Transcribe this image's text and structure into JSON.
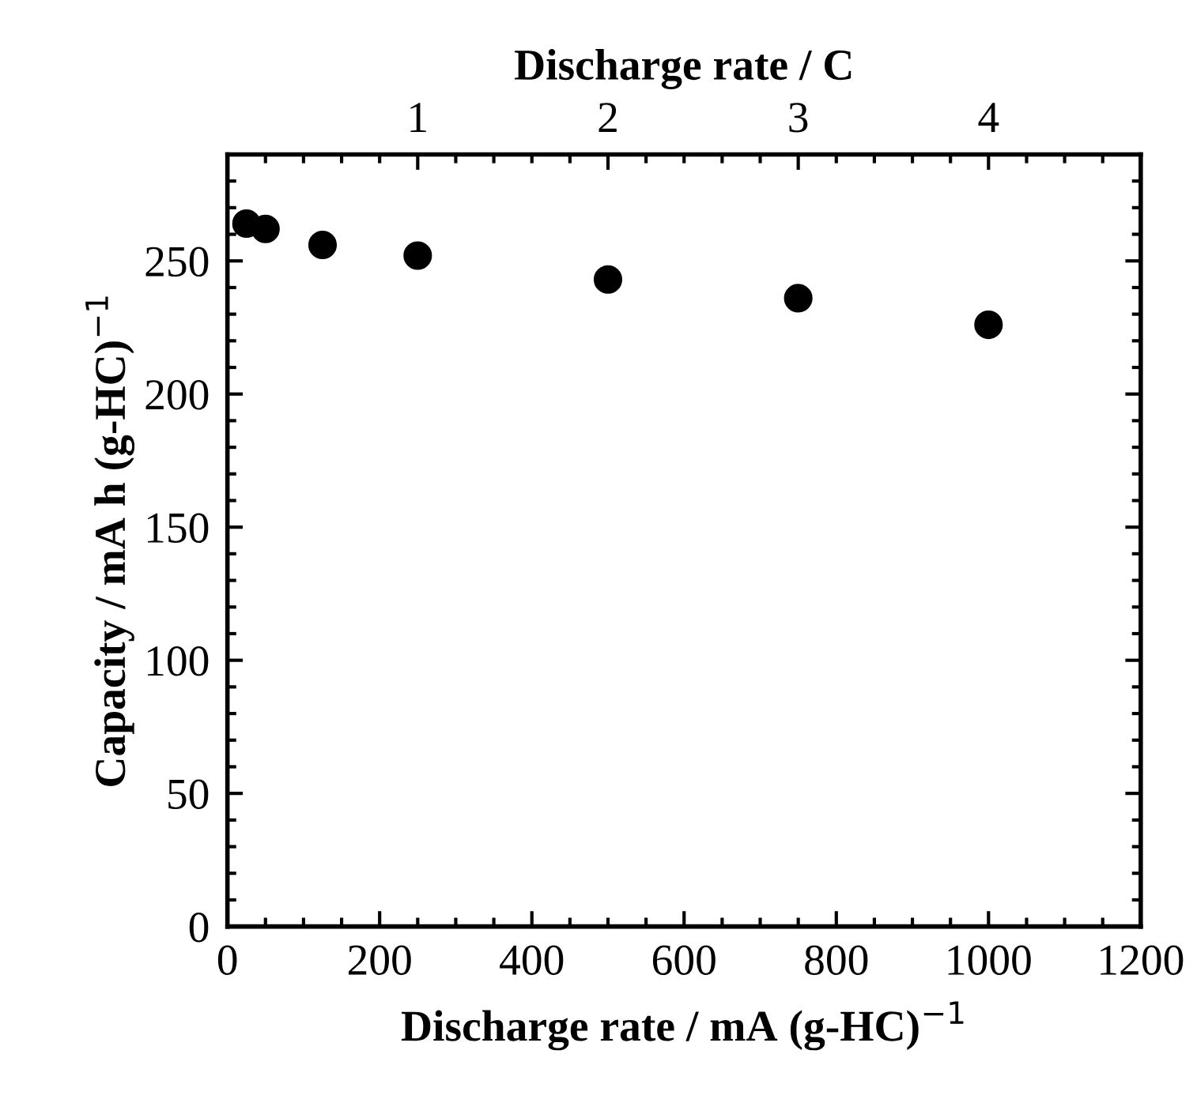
{
  "chart_data": {
    "type": "scatter",
    "xlabel": "Discharge rate / mA (g-HC)$^{−1}$",
    "ylabel": "Capacity / mA h (g-HC)$^{−1}$",
    "x2label": "Discharge rate / C",
    "x": [
      25,
      50,
      125,
      250,
      500,
      750,
      1000
    ],
    "series": [
      {
        "color": "#000000",
        "values": [
          264,
          262,
          256,
          252,
          243,
          236,
          226
        ]
      }
    ],
    "marker": "circle",
    "grid": false,
    "legend": false,
    "xlim": [
      0,
      1200
    ],
    "ylim": [
      0,
      290
    ],
    "x2lim": [
      0,
      4.8
    ],
    "xticks": [
      0,
      {
        "value": 50,
        "label": null
      },
      {
        "value": 100,
        "label": null
      },
      {
        "value": 150,
        "label": null
      },
      200,
      {
        "value": 250,
        "label": null
      },
      {
        "value": 300,
        "label": null
      },
      {
        "value": 350,
        "label": null
      },
      400,
      {
        "value": 450,
        "label": null
      },
      {
        "value": 500,
        "label": null
      },
      {
        "value": 550,
        "label": null
      },
      600,
      {
        "value": 650,
        "label": null
      },
      {
        "value": 700,
        "label": null
      },
      {
        "value": 750,
        "label": null
      },
      800,
      {
        "value": 850,
        "label": null
      },
      {
        "value": 900,
        "label": null
      },
      {
        "value": 950,
        "label": null
      },
      1000,
      {
        "value": 1050,
        "label": null
      },
      {
        "value": 1100,
        "label": null
      },
      {
        "value": 1150,
        "label": null
      },
      1200
    ],
    "yticks": [
      0,
      {
        "value": 10,
        "label": null
      },
      {
        "value": 20,
        "label": null
      },
      {
        "value": 30,
        "label": null
      },
      {
        "value": 40,
        "label": null
      },
      50,
      {
        "value": 60,
        "label": null
      },
      {
        "value": 70,
        "label": null
      },
      {
        "value": 80,
        "label": null
      },
      {
        "value": 90,
        "label": null
      },
      100,
      {
        "value": 110,
        "label": null
      },
      {
        "value": 120,
        "label": null
      },
      {
        "value": 130,
        "label": null
      },
      {
        "value": 140,
        "label": null
      },
      150,
      {
        "value": 160,
        "label": null
      },
      {
        "value": 170,
        "label": null
      },
      {
        "value": 180,
        "label": null
      },
      {
        "value": 190,
        "label": null
      },
      200,
      {
        "value": 210,
        "label": null
      },
      {
        "value": 220,
        "label": null
      },
      {
        "value": 230,
        "label": null
      },
      {
        "value": 240,
        "label": null
      },
      250,
      {
        "value": 260,
        "label": null
      },
      {
        "value": 270,
        "label": null
      },
      {
        "value": 280,
        "label": null
      }
    ],
    "x2ticks": [
      {
        "value": 0.2,
        "label": null
      },
      {
        "value": 0.4,
        "label": null
      },
      {
        "value": 0.6,
        "label": null
      },
      {
        "value": 0.8,
        "label": null
      },
      1,
      {
        "value": 1.2,
        "label": null
      },
      {
        "value": 1.4,
        "label": null
      },
      {
        "value": 1.6,
        "label": null
      },
      {
        "value": 1.8,
        "label": null
      },
      2,
      {
        "value": 2.2,
        "label": null
      },
      {
        "value": 2.4,
        "label": null
      },
      {
        "value": 2.6,
        "label": null
      },
      {
        "value": 2.8,
        "label": null
      },
      3,
      {
        "value": 3.2,
        "label": null
      },
      {
        "value": 3.4,
        "label": null
      },
      {
        "value": 3.6,
        "label": null
      },
      {
        "value": 3.8,
        "label": null
      },
      4,
      {
        "value": 4.2,
        "label": null
      },
      {
        "value": 4.4,
        "label": null
      },
      {
        "value": 4.6,
        "label": null
      }
    ]
  }
}
